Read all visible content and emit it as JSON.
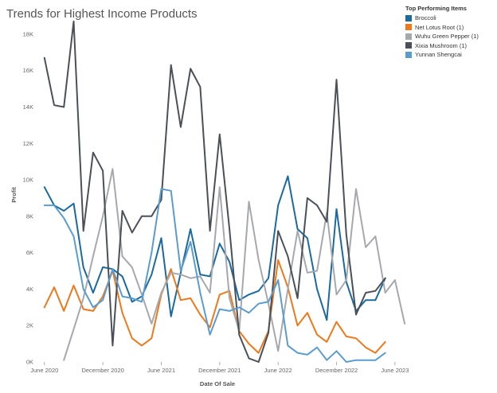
{
  "chart_data": {
    "type": "line",
    "title": "Trends for Highest Income Products",
    "xlabel": "Date Of Sale",
    "ylabel": "Profit",
    "ylim": [
      0,
      19000
    ],
    "y_ticks": [
      0,
      2000,
      4000,
      6000,
      8000,
      10000,
      12000,
      14000,
      16000,
      18000
    ],
    "y_tick_labels": [
      "0K",
      "2K",
      "4K",
      "6K",
      "8K",
      "10K",
      "12K",
      "14K",
      "16K",
      "18K"
    ],
    "x_tick_labels": [
      "June 2020",
      "December 2020",
      "June 2021",
      "December 2021",
      "June 2022",
      "December 2022",
      "June 2023"
    ],
    "x_tick_months": [
      0,
      6,
      12,
      18,
      24,
      30,
      36
    ],
    "x_range_months": [
      -0.8,
      36.5
    ],
    "grid": false,
    "legend": {
      "title": "Top Performing Items",
      "position": "top-right"
    },
    "series": [
      {
        "name": "Broccoli",
        "color": "#1a6a9f",
        "start_month": 0,
        "values": [
          9600,
          8600,
          8300,
          8700,
          5200,
          3800,
          5200,
          5100,
          4700,
          3300,
          3600,
          4800,
          6800,
          2500,
          4900,
          7300,
          4800,
          4700,
          6500,
          5500,
          3400,
          3700,
          3900,
          4600,
          8600,
          10200,
          7300,
          6800,
          4000,
          2300,
          8400,
          4400,
          2800,
          3400,
          3400,
          4600
        ]
      },
      {
        "name": "Net Lotus Root (1)",
        "color": "#ec7a1c",
        "start_month": 0,
        "values": [
          3000,
          4100,
          2800,
          4200,
          2900,
          2800,
          3600,
          5000,
          2700,
          1300,
          900,
          1300,
          3700,
          5100,
          3400,
          3500,
          2600,
          1900,
          3700,
          3900,
          1700,
          1000,
          500,
          1700,
          5600,
          4100,
          2000,
          2700,
          1500,
          1100,
          2200,
          1400,
          1300,
          800,
          500,
          1100
        ]
      },
      {
        "name": "Wuhu Green Pepper (1)",
        "color": "#a5a8ad",
        "start_month": 2,
        "values": [
          100,
          1800,
          3500,
          5800,
          8000,
          10600,
          5800,
          5200,
          3700,
          2100,
          3800,
          4900,
          4800,
          4600,
          4700,
          3800,
          9600,
          3500,
          1700,
          8800,
          5600,
          3200,
          600,
          4000,
          7200,
          4900,
          5000,
          8200,
          3700,
          4500,
          9500,
          6300,
          6900,
          3800,
          4500,
          2100
        ]
      },
      {
        "name": "Xixia Mushroom (1)",
        "color": "#4a5058",
        "start_month": 0,
        "values": [
          16700,
          14100,
          14000,
          18700,
          7200,
          11500,
          10500,
          900,
          8300,
          7100,
          8000,
          8000,
          8900,
          16300,
          12900,
          16100,
          15100,
          7200,
          12500,
          7300,
          1500,
          200,
          0,
          1600,
          7200,
          5800,
          3500,
          9000,
          8600,
          7700,
          15500,
          7000,
          2600,
          3800,
          3900,
          4600
        ]
      },
      {
        "name": "Yunnan Shengcai",
        "color": "#5b9ccf",
        "start_month": 0,
        "values": [
          8600,
          8600,
          7900,
          6900,
          4000,
          3000,
          3400,
          5100,
          3600,
          3500,
          3300,
          6000,
          9500,
          9400,
          5000,
          6600,
          3800,
          1500,
          2900,
          2800,
          3000,
          2700,
          3200,
          3300,
          4500,
          900,
          500,
          400,
          800,
          100,
          600,
          0,
          100,
          100,
          100,
          500
        ]
      }
    ]
  }
}
